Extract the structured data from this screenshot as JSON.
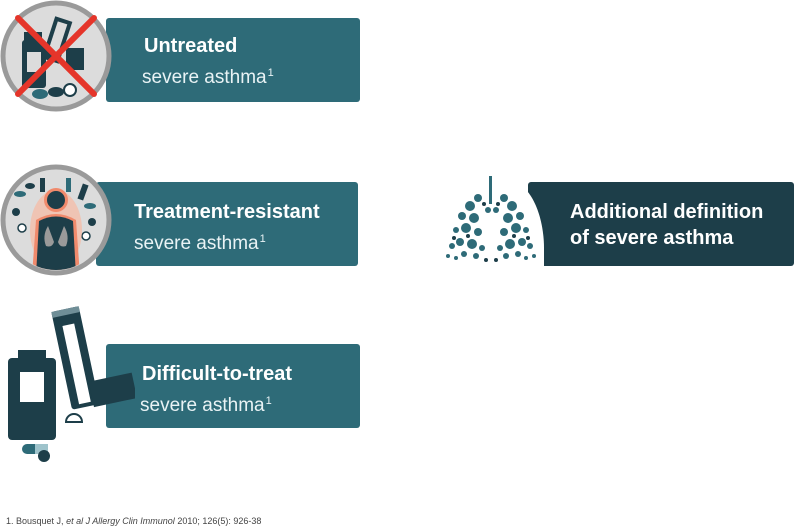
{
  "cards": [
    {
      "title": "Untreated",
      "subtitle": "severe asthma",
      "superscript": "1"
    },
    {
      "title": "Treatment-resistant",
      "subtitle": "severe asthma",
      "superscript": "1"
    },
    {
      "title": "Difficult-to-treat",
      "subtitle": "severe asthma",
      "superscript": "1"
    },
    {
      "title_line1": "Additional definition",
      "title_line2": "of severe asthma"
    }
  ],
  "footnote": {
    "number": "1.",
    "authors": "Bousquet J,",
    "etal": "et al",
    "journal": "J Allergy Clin Immunol",
    "citation": "2010; 126(5): 926-38"
  },
  "colors": {
    "teal": "#2e6b78",
    "dark_teal": "#1d3e49",
    "cross_red": "#e5352a",
    "body_glow": "#f08a6c",
    "circle_grey": "#9a9a9a"
  },
  "icons": [
    "medications-crossed-icon",
    "resistant-body-icon",
    "inhaler-icon",
    "lungs-icon"
  ]
}
